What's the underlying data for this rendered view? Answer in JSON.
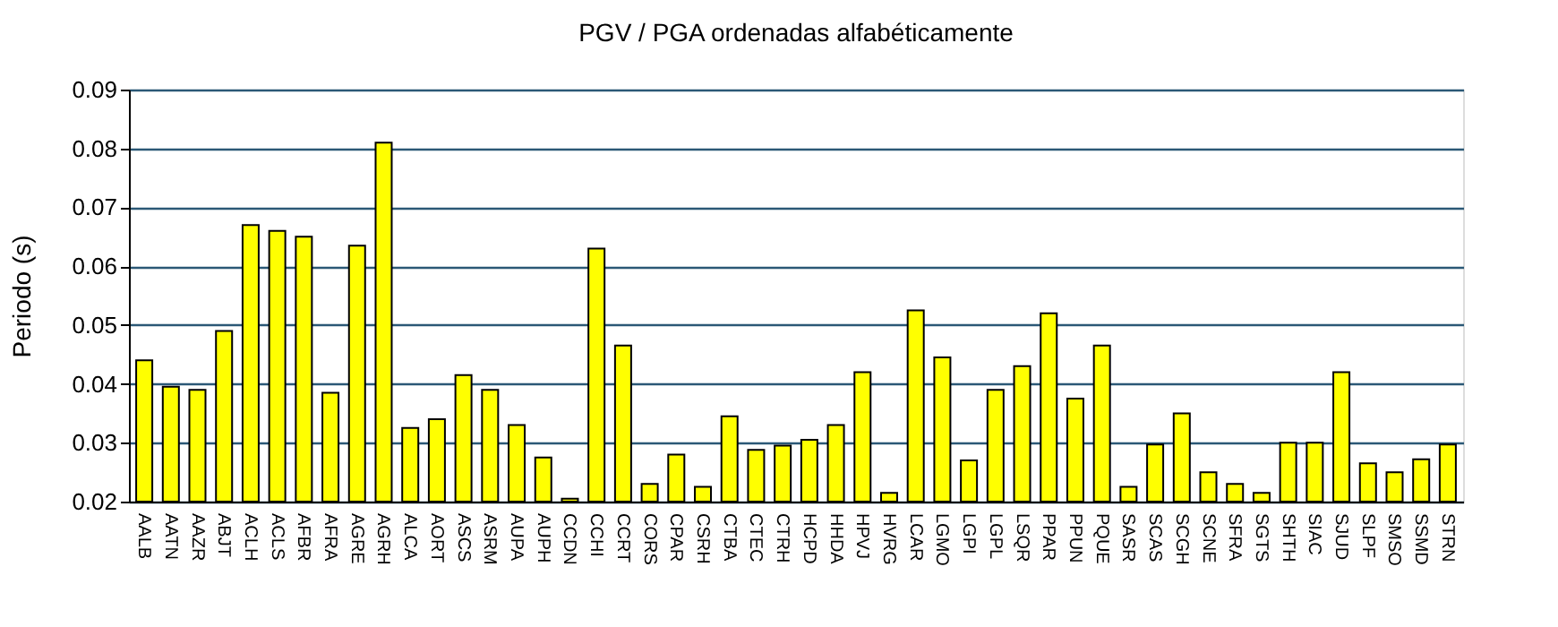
{
  "chart_data": {
    "type": "bar",
    "title": "PGV / PGA ordenadas alfabéticamente",
    "ylabel": "Periodo (s)",
    "categories": [
      "AALB",
      "AATN",
      "AAZR",
      "ABJT",
      "ACLH",
      "ACLS",
      "AFBR",
      "AFRA",
      "AGRE",
      "AGRH",
      "ALCA",
      "AORT",
      "ASCS",
      "ASRM",
      "AUPA",
      "AUPH",
      "CCDN",
      "CCHI",
      "CCRT",
      "CORS",
      "CPAR",
      "CSRH",
      "CTBA",
      "CTEC",
      "CTRH",
      "HCPD",
      "HHDA",
      "HPVJ",
      "HVRG",
      "LCAR",
      "LGMO",
      "LGPI",
      "LGPL",
      "LSQR",
      "PPAR",
      "PPUN",
      "PQUE",
      "SASR",
      "SCAS",
      "SCGH",
      "SCNE",
      "SFRA",
      "SGTS",
      "SHTH",
      "SIAC",
      "SJUD",
      "SLPF",
      "SMSO",
      "SSMD",
      "STRN"
    ],
    "values": [
      0.044,
      0.0395,
      0.039,
      0.049,
      0.067,
      0.066,
      0.065,
      0.0385,
      0.0635,
      0.081,
      0.0325,
      0.034,
      0.0415,
      0.039,
      0.033,
      0.0275,
      0.0205,
      0.063,
      0.0465,
      0.023,
      0.028,
      0.0225,
      0.0345,
      0.0288,
      0.0295,
      0.0305,
      0.033,
      0.042,
      0.0215,
      0.0525,
      0.0445,
      0.027,
      0.039,
      0.043,
      0.052,
      0.0375,
      0.0465,
      0.0225,
      0.0297,
      0.035,
      0.025,
      0.023,
      0.0215,
      0.03,
      0.03,
      0.042,
      0.0265,
      0.025,
      0.0272,
      0.0297
    ],
    "color": "#ffff00",
    "ylim": [
      0.02,
      0.09
    ],
    "yticks": [
      0.02,
      0.03,
      0.04,
      0.05,
      0.06,
      0.07,
      0.08,
      0.09
    ],
    "grid": "y"
  }
}
